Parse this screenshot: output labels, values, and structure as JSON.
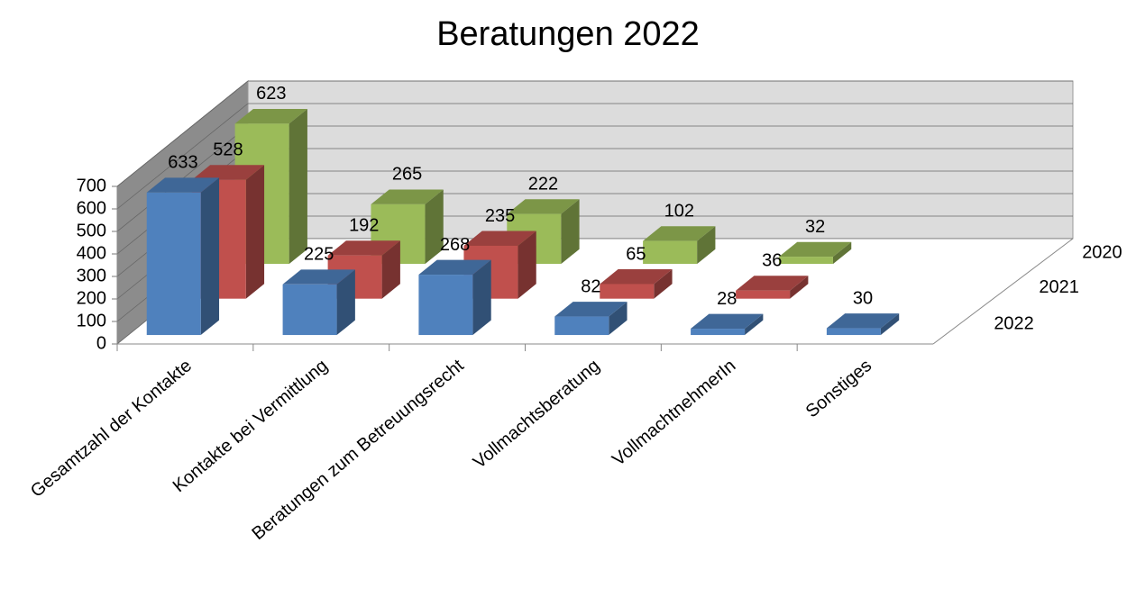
{
  "chart_data": {
    "type": "bar3d",
    "title": "Beratungen 2022",
    "categories": [
      "Gesamtzahl der Kontakte",
      "Kontakte bei Vermittlung",
      "Beratungen zum Betreuungsrecht",
      "Vollmachtsberatung",
      "VollmachtnehmerIn",
      "Sonstiges"
    ],
    "series": [
      {
        "name": "2022",
        "color": "#4f81bd",
        "values": [
          633,
          225,
          268,
          82,
          28,
          30
        ]
      },
      {
        "name": "2021",
        "color": "#c0504d",
        "values": [
          528,
          192,
          235,
          65,
          36,
          null
        ]
      },
      {
        "name": "2020",
        "color": "#9bbb59",
        "values": [
          623,
          265,
          222,
          102,
          32,
          null
        ]
      }
    ],
    "ylim": [
      0,
      700
    ],
    "yticks": [
      0,
      100,
      200,
      300,
      400,
      500,
      600,
      700
    ],
    "grid": true
  }
}
